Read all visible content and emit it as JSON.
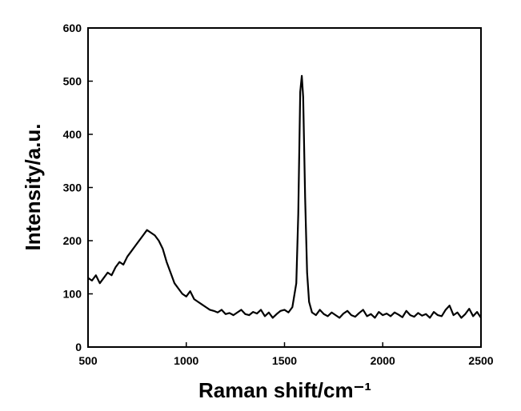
{
  "chart_data": {
    "type": "line",
    "xlabel": "Raman shift/cm⁻¹",
    "ylabel": "Intensity/a.u.",
    "color": "#000000",
    "xlim": [
      500,
      2500
    ],
    "xticks": [
      500,
      1000,
      1500,
      2000,
      2500
    ],
    "ylim": [
      0,
      600
    ],
    "yticks": [
      0,
      100,
      200,
      300,
      400,
      500,
      600
    ],
    "x": [
      500,
      520,
      540,
      560,
      580,
      600,
      620,
      640,
      660,
      680,
      700,
      720,
      740,
      760,
      780,
      800,
      820,
      840,
      860,
      880,
      900,
      920,
      940,
      960,
      980,
      1000,
      1020,
      1040,
      1060,
      1080,
      1100,
      1120,
      1140,
      1160,
      1180,
      1200,
      1220,
      1240,
      1260,
      1280,
      1300,
      1320,
      1340,
      1360,
      1380,
      1400,
      1420,
      1440,
      1460,
      1480,
      1500,
      1520,
      1540,
      1560,
      1570,
      1580,
      1588,
      1595,
      1605,
      1615,
      1625,
      1640,
      1660,
      1680,
      1700,
      1720,
      1740,
      1760,
      1780,
      1800,
      1820,
      1840,
      1860,
      1880,
      1900,
      1920,
      1940,
      1960,
      1980,
      2000,
      2020,
      2040,
      2060,
      2080,
      2100,
      2120,
      2140,
      2160,
      2180,
      2200,
      2220,
      2240,
      2260,
      2280,
      2300,
      2320,
      2340,
      2360,
      2380,
      2400,
      2420,
      2440,
      2460,
      2480,
      2500
    ],
    "values": [
      130,
      125,
      135,
      120,
      130,
      140,
      135,
      150,
      160,
      155,
      170,
      180,
      190,
      200,
      210,
      220,
      215,
      210,
      200,
      185,
      160,
      140,
      120,
      110,
      100,
      95,
      105,
      90,
      85,
      80,
      75,
      70,
      68,
      65,
      70,
      62,
      64,
      60,
      65,
      70,
      62,
      60,
      66,
      63,
      70,
      58,
      65,
      55,
      62,
      68,
      70,
      65,
      75,
      120,
      250,
      480,
      510,
      470,
      280,
      140,
      85,
      65,
      60,
      70,
      62,
      58,
      65,
      60,
      55,
      63,
      68,
      60,
      57,
      64,
      70,
      58,
      62,
      55,
      66,
      60,
      63,
      58,
      65,
      61,
      56,
      68,
      60,
      57,
      64,
      59,
      62,
      55,
      66,
      60,
      58,
      70,
      78,
      60,
      65,
      55,
      62,
      72,
      58,
      66,
      55
    ]
  }
}
